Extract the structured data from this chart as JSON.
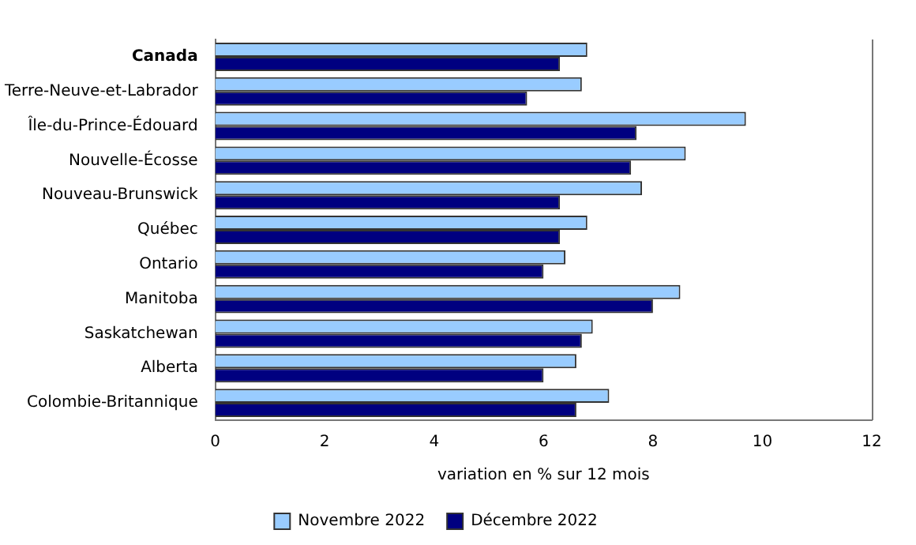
{
  "chart_data": {
    "type": "bar",
    "orientation": "horizontal",
    "xlabel": "variation en % sur 12 mois",
    "categories": [
      "Canada",
      "Terre-Neuve-et-Labrador",
      "Île-du-Prince-Édouard",
      "Nouvelle-Écosse",
      "Nouveau-Brunswick",
      "Québec",
      "Ontario",
      "Manitoba",
      "Saskatchewan",
      "Alberta",
      "Colombie-Britannique"
    ],
    "series": [
      {
        "name": "Novembre 2022",
        "color": "#99ccff",
        "values": [
          6.8,
          6.7,
          9.7,
          8.6,
          7.8,
          6.8,
          6.4,
          8.5,
          6.9,
          6.6,
          7.2
        ]
      },
      {
        "name": "Décembre 2022",
        "color": "#000080",
        "values": [
          6.3,
          5.7,
          7.7,
          7.6,
          6.3,
          6.3,
          6.0,
          8.0,
          6.7,
          6.0,
          6.6
        ]
      }
    ],
    "xlim": [
      0,
      12
    ],
    "xticks": [
      0,
      2,
      4,
      6,
      8,
      10,
      12
    ],
    "grid": false,
    "legend": "bottom"
  }
}
